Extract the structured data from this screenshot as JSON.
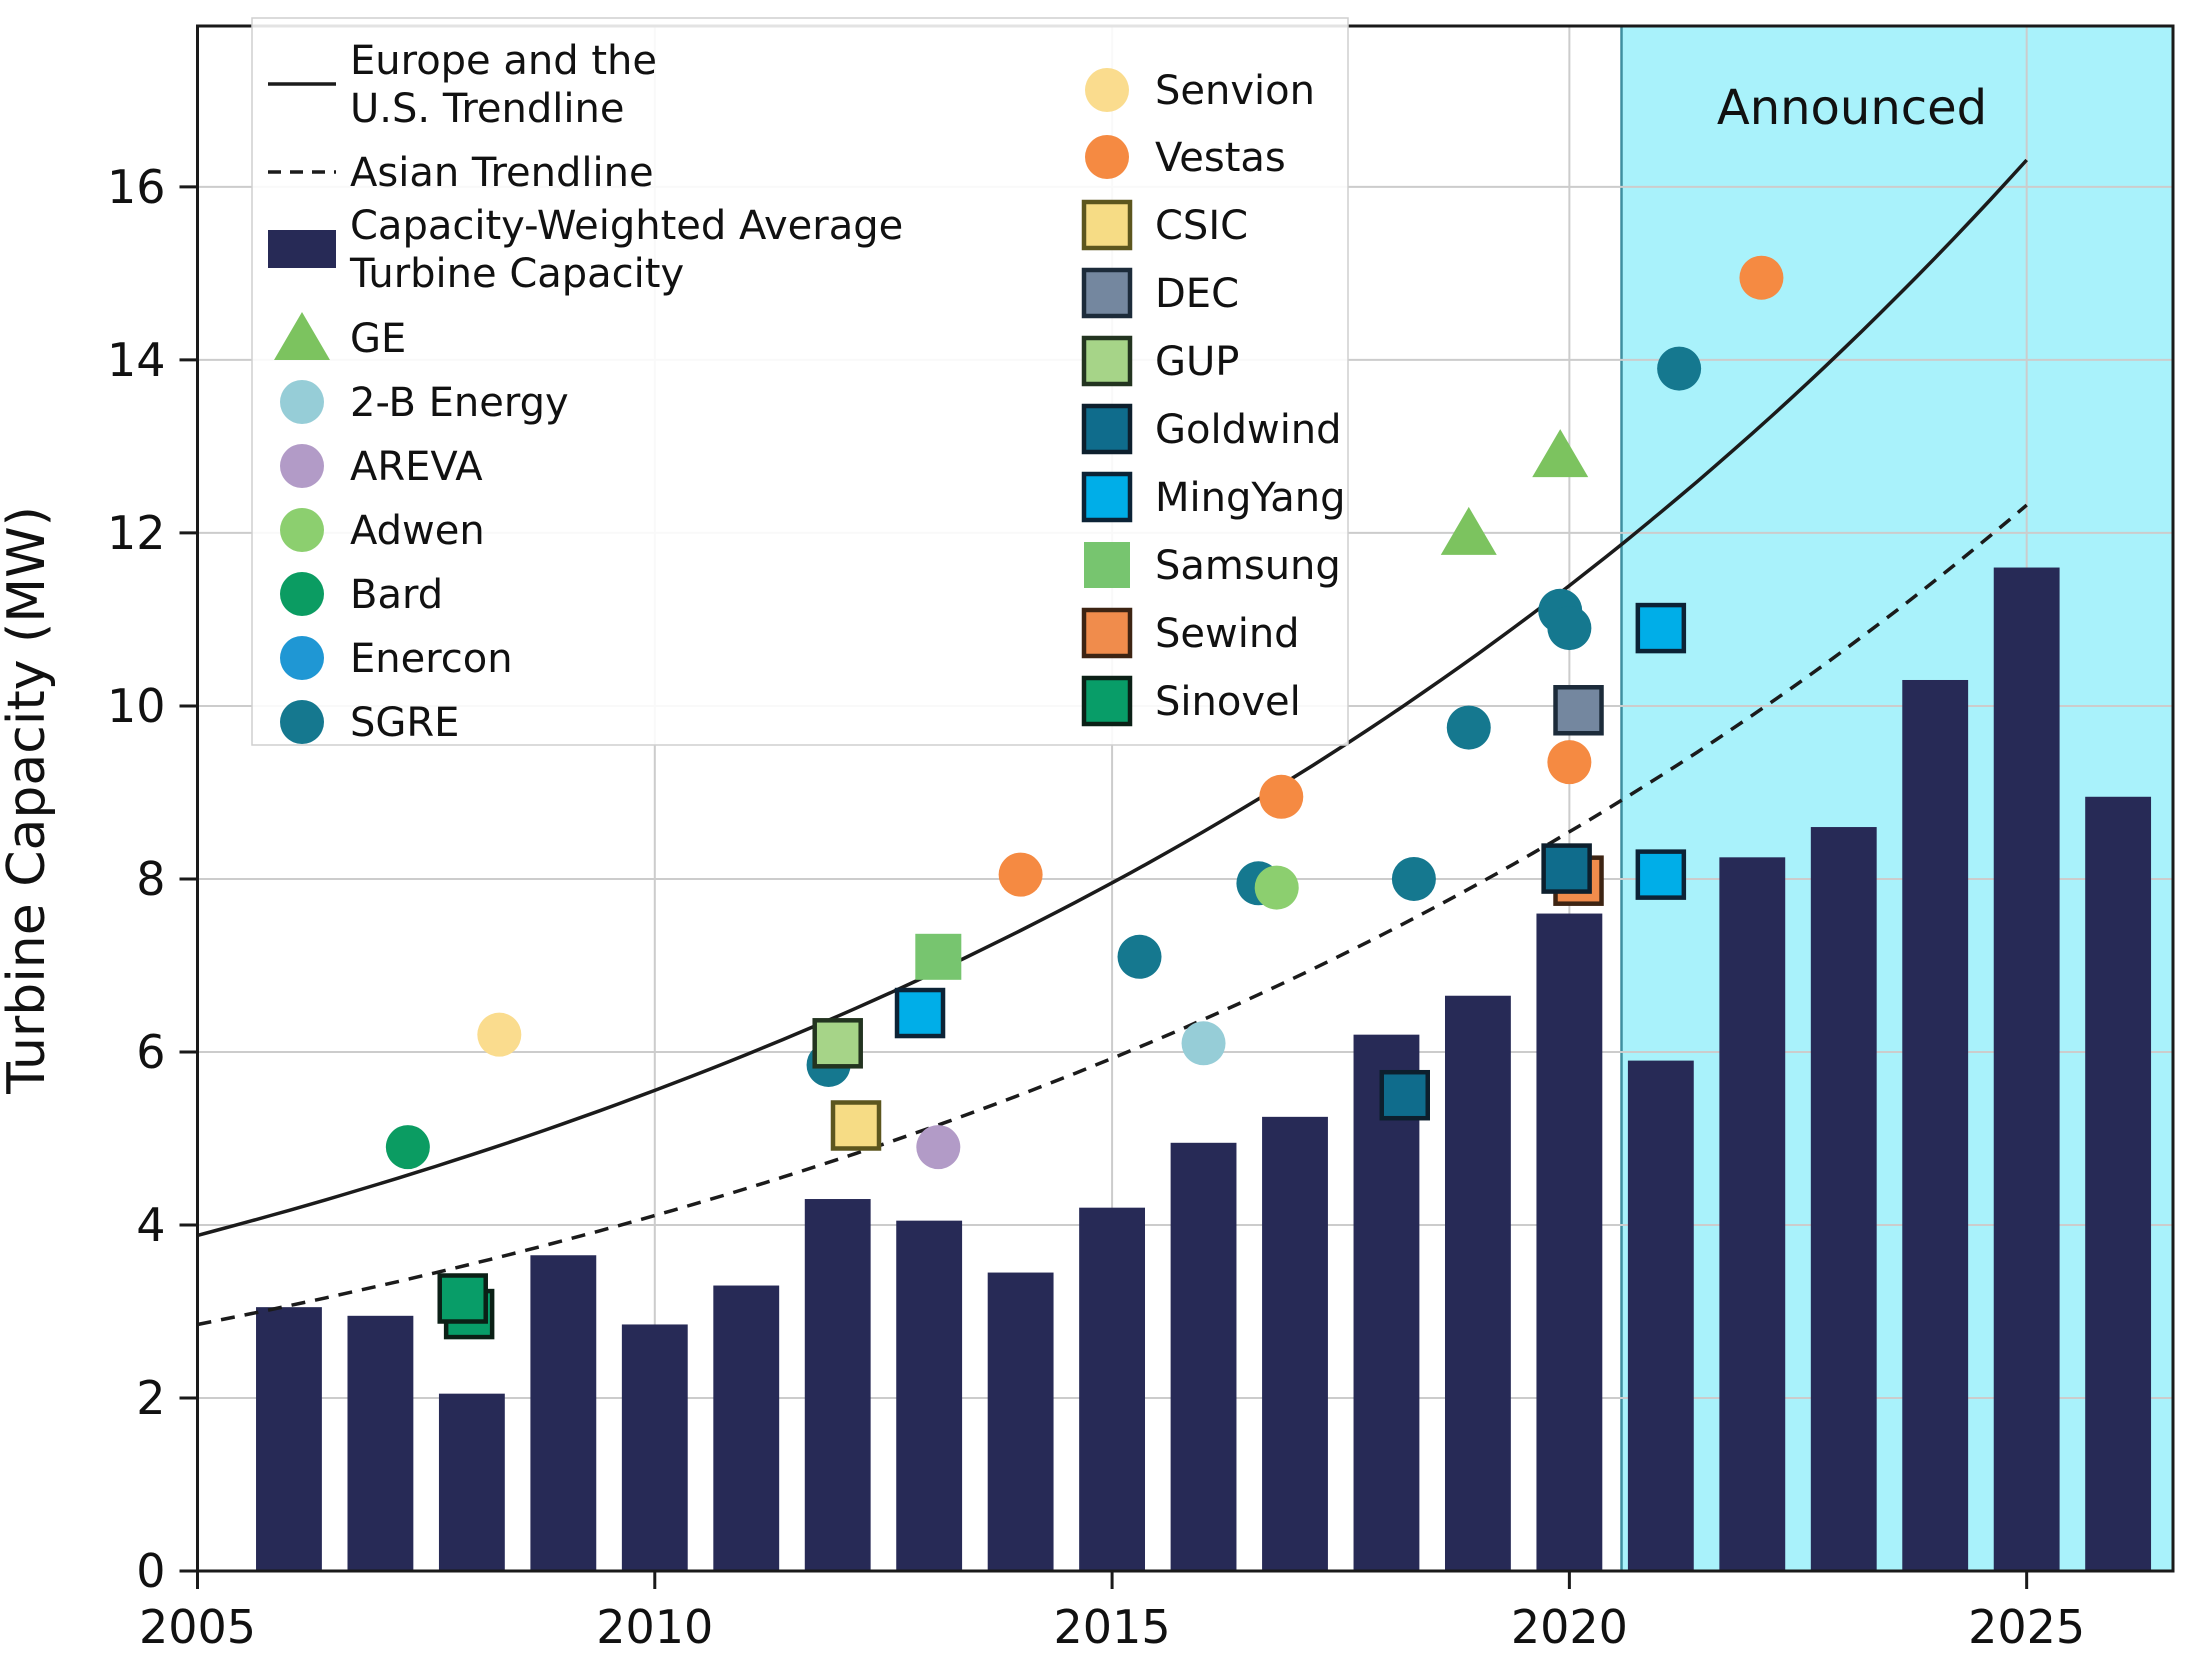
{
  "chart_data": {
    "type": "combo-bar-scatter-line",
    "ylabel": "Turbine Capacity (MW)",
    "xlim": [
      2005,
      2026.6
    ],
    "ylim": [
      0,
      17.86
    ],
    "grid": true,
    "xticks": [
      2005,
      2010,
      2015,
      2020,
      2025
    ],
    "xtick_labels": [
      "2005",
      "2010",
      "2015",
      "2020",
      "2025"
    ],
    "yticks": [
      0,
      2,
      4,
      6,
      8,
      10,
      12,
      14,
      16
    ],
    "ytick_labels": [
      "0",
      "2",
      "4",
      "6",
      "8",
      "10",
      "12",
      "14",
      "16"
    ],
    "announced": {
      "label": "Announced",
      "start_year": 2020.57,
      "fill_color": "#a9f2fb",
      "edge_color": "#3f8fa0"
    },
    "bars": {
      "name": "Capacity-Weighted Average Turbine Capacity",
      "color": "#272a56",
      "bar_width_years": 0.72,
      "years": [
        2006,
        2007,
        2008,
        2009,
        2010,
        2011,
        2012,
        2013,
        2014,
        2015,
        2016,
        2017,
        2018,
        2019,
        2020,
        2021,
        2022,
        2023,
        2024,
        2025,
        2026
      ],
      "values": [
        3.05,
        2.95,
        2.05,
        3.65,
        2.85,
        3.3,
        4.3,
        4.05,
        3.45,
        4.2,
        4.95,
        5.25,
        6.2,
        6.65,
        7.6,
        5.9,
        8.25,
        8.6,
        10.3,
        11.6,
        8.95
      ]
    },
    "trendlines": [
      {
        "name": "Europe and the U.S. Trendline",
        "style": "solid",
        "color": "#1b1b1b",
        "start_value": 3.88,
        "growth_rate": 0.0718,
        "x_start": 2005,
        "x_end": 2025.05,
        "values_at_ticks": {
          "2005": 3.9,
          "2010": 5.5,
          "2015": 7.9,
          "2020": 11.3,
          "2025": 16.3
        }
      },
      {
        "name": "Asian Trendline",
        "style": "dashed",
        "color": "#1b1b1b",
        "start_value": 2.85,
        "growth_rate": 0.0732,
        "x_start": 2005,
        "x_end": 2025.05,
        "values_at_ticks": {
          "2005": 2.9,
          "2010": 4.1,
          "2015": 5.9,
          "2020": 8.5,
          "2025": 12.3
        }
      }
    ],
    "manufacturers": [
      {
        "name": "GE",
        "marker": "triangle",
        "color": "#7cc35f",
        "edge": "none",
        "points": [
          [
            2018.9,
            12.0
          ],
          [
            2019.9,
            12.9
          ]
        ]
      },
      {
        "name": "2-B Energy",
        "marker": "circle",
        "color": "#96cdd7",
        "edge": "none",
        "points": [
          [
            2016.0,
            6.1
          ]
        ]
      },
      {
        "name": "AREVA",
        "marker": "circle",
        "color": "#b29bc7",
        "edge": "none",
        "points": [
          [
            2013.1,
            4.9
          ]
        ]
      },
      {
        "name": "Adwen",
        "marker": "circle",
        "color": "#8ccf6f",
        "edge": "none",
        "points": [
          [
            2016.8,
            7.9
          ]
        ]
      },
      {
        "name": "Bard",
        "marker": "circle",
        "color": "#0b9c62",
        "edge": "none",
        "points": [
          [
            2007.3,
            4.9
          ]
        ]
      },
      {
        "name": "Enercon",
        "marker": "circle",
        "color": "#1f97d4",
        "edge": "none",
        "points": []
      },
      {
        "name": "SGRE",
        "marker": "circle",
        "color": "#15788f",
        "edge": "none",
        "points": [
          [
            2011.9,
            5.85
          ],
          [
            2015.3,
            7.1
          ],
          [
            2016.6,
            7.95
          ],
          [
            2018.3,
            8.0
          ],
          [
            2018.9,
            9.75
          ],
          [
            2019.9,
            11.1
          ],
          [
            2020.0,
            10.9
          ],
          [
            2021.2,
            13.9
          ]
        ]
      },
      {
        "name": "Senvion",
        "marker": "circle",
        "color": "#fadc8e",
        "edge": "none",
        "points": [
          [
            2008.3,
            6.2
          ]
        ]
      },
      {
        "name": "Vestas",
        "marker": "circle",
        "color": "#f58a42",
        "edge": "none",
        "points": [
          [
            2014.0,
            8.05
          ],
          [
            2016.85,
            8.95
          ],
          [
            2020.0,
            9.35
          ],
          [
            2022.1,
            14.95
          ]
        ]
      },
      {
        "name": "CSIC",
        "marker": "square",
        "color": "#f6dc85",
        "edge": "#5c561e",
        "points": [
          [
            2012.2,
            5.15
          ]
        ]
      },
      {
        "name": "DEC",
        "marker": "square",
        "color": "#74879f",
        "edge": "#1c2b3a",
        "points": [
          [
            2020.1,
            9.95
          ]
        ]
      },
      {
        "name": "GUP",
        "marker": "square",
        "color": "#a6d488",
        "edge": "#233420",
        "points": [
          [
            2012.0,
            6.1
          ]
        ]
      },
      {
        "name": "Goldwind",
        "marker": "square",
        "color": "#0f6c8c",
        "edge": "#0d1f2d",
        "points": [
          [
            2018.2,
            5.5
          ],
          [
            2019.97,
            8.12
          ]
        ]
      },
      {
        "name": "MingYang",
        "marker": "square",
        "color": "#00aee8",
        "edge": "#0c2336",
        "points": [
          [
            2012.9,
            6.45
          ],
          [
            2021.0,
            10.9
          ],
          [
            2021.0,
            8.05
          ]
        ]
      },
      {
        "name": "Samsung",
        "marker": "square",
        "color": "#77c56f",
        "edge": "none",
        "points": [
          [
            2013.1,
            7.1
          ]
        ]
      },
      {
        "name": "Sewind",
        "marker": "square",
        "color": "#f08c4c",
        "edge": "#3d2413",
        "points": [
          [
            2020.1,
            7.98
          ]
        ]
      },
      {
        "name": "Sinovel",
        "marker": "square",
        "color": "#089d68",
        "edge": "#0b2016",
        "points": [
          [
            2007.97,
            2.97
          ],
          [
            2007.9,
            3.15
          ]
        ]
      }
    ],
    "draw_order": [
      "Senvion",
      "Bard",
      "2-B Energy",
      "AREVA",
      "SGRE",
      "Adwen",
      "Enercon",
      "Vestas",
      "Sinovel",
      "CSIC",
      "Sewind",
      "Goldwind",
      "GUP",
      "MingYang",
      "DEC",
      "Samsung",
      "GE"
    ],
    "legend": {
      "left_column": [
        {
          "symbol": "solid-line",
          "label_lines": [
            "Europe and the",
            "U.S. Trendline"
          ]
        },
        {
          "symbol": "dashed-line",
          "label_lines": [
            "Asian Trendline"
          ]
        },
        {
          "symbol": "bar",
          "label_lines": [
            "Capacity-Weighted Average",
            "Turbine Capacity"
          ],
          "color": "#272a56"
        },
        {
          "symbol": "triangle",
          "label_lines": [
            "GE"
          ],
          "color": "#7cc35f",
          "edge": "none"
        },
        {
          "symbol": "circle",
          "label_lines": [
            "2-B Energy"
          ],
          "color": "#96cdd7",
          "edge": "none"
        },
        {
          "symbol": "circle",
          "label_lines": [
            "AREVA"
          ],
          "color": "#b29bc7",
          "edge": "none"
        },
        {
          "symbol": "circle",
          "label_lines": [
            "Adwen"
          ],
          "color": "#8ccf6f",
          "edge": "none"
        },
        {
          "symbol": "circle",
          "label_lines": [
            "Bard"
          ],
          "color": "#0b9c62",
          "edge": "none"
        },
        {
          "symbol": "circle",
          "label_lines": [
            "Enercon"
          ],
          "color": "#1f97d4",
          "edge": "none"
        },
        {
          "symbol": "circle",
          "label_lines": [
            "SGRE"
          ],
          "color": "#15788f",
          "edge": "none"
        }
      ],
      "right_column": [
        {
          "symbol": "circle",
          "label_lines": [
            "Senvion"
          ],
          "color": "#fadc8e",
          "edge": "none"
        },
        {
          "symbol": "circle",
          "label_lines": [
            "Vestas"
          ],
          "color": "#f58a42",
          "edge": "none"
        },
        {
          "symbol": "square",
          "label_lines": [
            "CSIC"
          ],
          "color": "#f6dc85",
          "edge": "#5c561e"
        },
        {
          "symbol": "square",
          "label_lines": [
            "DEC"
          ],
          "color": "#74879f",
          "edge": "#1c2b3a"
        },
        {
          "symbol": "square",
          "label_lines": [
            "GUP"
          ],
          "color": "#a6d488",
          "edge": "#233420"
        },
        {
          "symbol": "square",
          "label_lines": [
            "Goldwind"
          ],
          "color": "#0f6c8c",
          "edge": "#0d1f2d"
        },
        {
          "symbol": "square",
          "label_lines": [
            "MingYang"
          ],
          "color": "#00aee8",
          "edge": "#0c2336"
        },
        {
          "symbol": "square",
          "label_lines": [
            "Samsung"
          ],
          "color": "#77c56f",
          "edge": "none"
        },
        {
          "symbol": "square",
          "label_lines": [
            "Sewind"
          ],
          "color": "#f08c4c",
          "edge": "#3d2413"
        },
        {
          "symbol": "square",
          "label_lines": [
            "Sinovel"
          ],
          "color": "#089d68",
          "edge": "#0b2016"
        }
      ]
    },
    "colors": {
      "bar_navy": "#272a56",
      "announced_cyan": "#a9f2fb",
      "gridline": "#cccccc",
      "frame": "#1a1a1a",
      "text": "#111111"
    }
  }
}
